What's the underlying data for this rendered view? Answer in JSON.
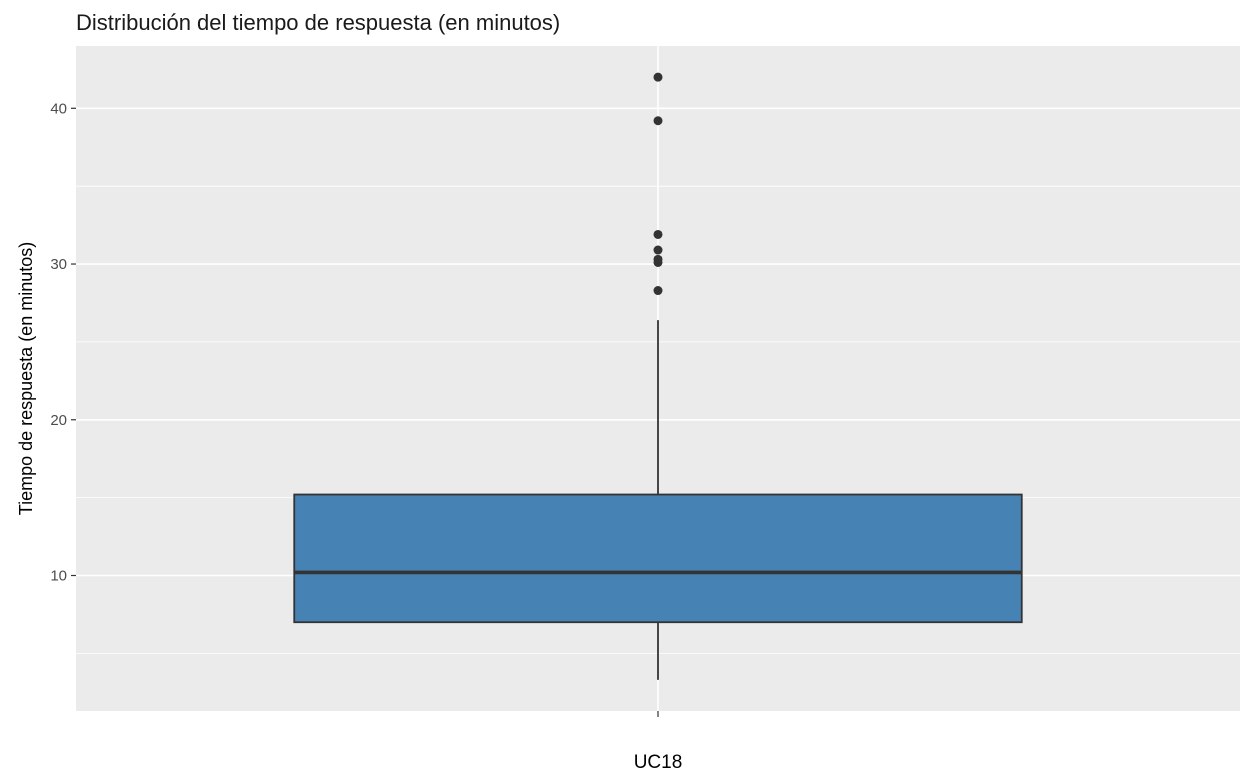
{
  "chart_data": {
    "type": "boxplot",
    "title": "Distribución del tiempo de respuesta (en minutos)",
    "xlabel": "",
    "ylabel": "Tiempo de respuesta (en minutos)",
    "categories": [
      "UC18"
    ],
    "ylim": [
      1.3,
      44
    ],
    "y_ticks": [
      10,
      20,
      30,
      40
    ],
    "grid": true,
    "legend": "none",
    "boxes": [
      {
        "category": "UC18",
        "whisker_low": 3.3,
        "q1": 7.0,
        "median": 10.2,
        "q3": 15.2,
        "whisker_high": 26.4,
        "outliers": [
          28.3,
          30.1,
          30.3,
          30.9,
          31.9,
          39.2,
          42.0
        ]
      }
    ],
    "colors": {
      "panel_background": "#EBEBEB",
      "grid": "#FFFFFF",
      "box_fill": "#4682B4",
      "box_line": "#333333",
      "outlier": "#333333",
      "tick_text": "#4D4D4D"
    }
  }
}
